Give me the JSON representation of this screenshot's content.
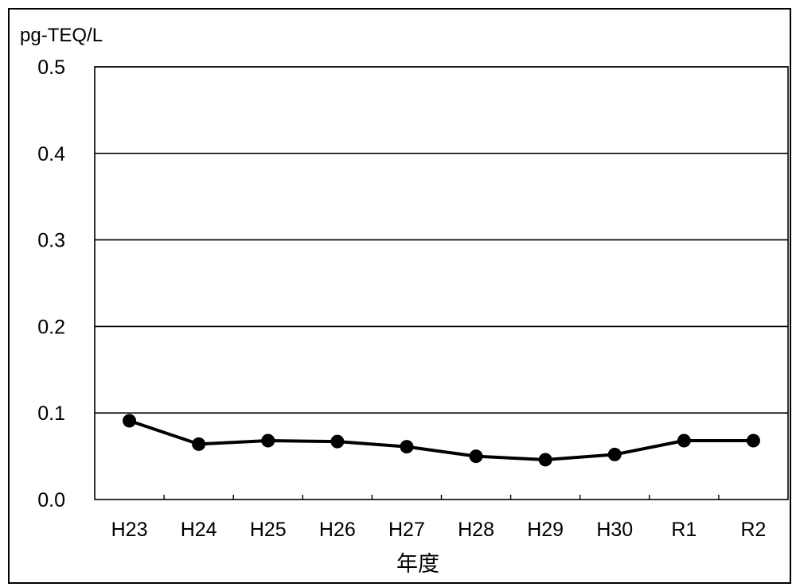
{
  "chart_data": {
    "type": "line",
    "unit_label": "pg-TEQ/L",
    "xlabel": "年度",
    "ylabel": "",
    "categories": [
      "H23",
      "H24",
      "H25",
      "H26",
      "H27",
      "H28",
      "H29",
      "H30",
      "R1",
      "R2"
    ],
    "series": [
      {
        "values": [
          0.091,
          0.064,
          0.068,
          0.067,
          0.061,
          0.05,
          0.046,
          0.052,
          0.068,
          0.068
        ]
      }
    ],
    "ylim": [
      0,
      0.5
    ],
    "yticks": [
      "0.0",
      "0.1",
      "0.2",
      "0.3",
      "0.4",
      "0.5"
    ],
    "grid": true,
    "colors": {
      "line": "#000000",
      "marker": "#000000",
      "grid": "#000000",
      "background": "#ffffff"
    }
  }
}
